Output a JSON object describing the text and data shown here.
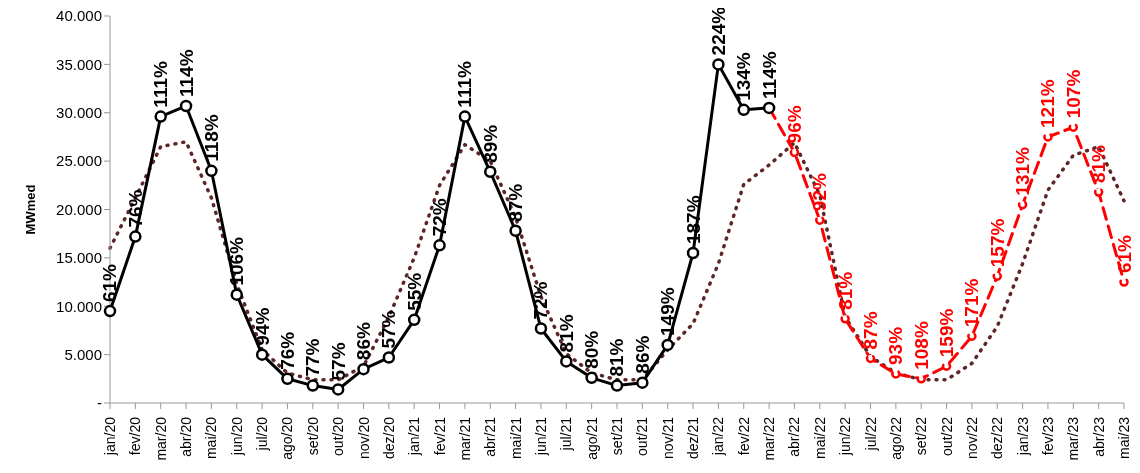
{
  "chart_data": {
    "type": "line",
    "ylabel": "MWmed",
    "categories": [
      "jan/20",
      "fev/20",
      "mar/20",
      "abr/20",
      "mai/20",
      "jun/20",
      "jul/20",
      "ago/20",
      "set/20",
      "out/20",
      "nov/20",
      "dez/20",
      "jan/21",
      "fev/21",
      "mar/21",
      "abr/21",
      "mai/21",
      "jun/21",
      "jul/21",
      "ago/21",
      "set/21",
      "out/21",
      "nov/21",
      "dez/21",
      "jan/22",
      "fev/22",
      "mar/22",
      "abr/22",
      "mai/22",
      "jun/22",
      "jul/22",
      "ago/22",
      "set/22",
      "out/22",
      "nov/22",
      "dez/22",
      "jan/23",
      "fev/23",
      "mar/23",
      "abr/23",
      "mai/23"
    ],
    "ylim": [
      0,
      40000
    ],
    "yticks": [
      {
        "value": 0,
        "label": "-"
      },
      {
        "value": 5000,
        "label": "5.000"
      },
      {
        "value": 10000,
        "label": "10.000"
      },
      {
        "value": 15000,
        "label": "15.000"
      },
      {
        "value": 20000,
        "label": "20.000"
      },
      {
        "value": 25000,
        "label": "25.000"
      },
      {
        "value": 30000,
        "label": "30.000"
      },
      {
        "value": 35000,
        "label": "35.000"
      },
      {
        "value": 40000,
        "label": "40.000"
      }
    ],
    "grid": false,
    "legend": false,
    "series": [
      {
        "color": "#5c2626",
        "line_style": "dotted",
        "marker": "none",
        "values": [
          16000,
          21200,
          26500,
          27000,
          21200,
          12300,
          5500,
          3100,
          2400,
          2400,
          3800,
          8900,
          15000,
          22500,
          26700,
          25000,
          19200,
          11000,
          5100,
          3100,
          2400,
          2400,
          5500,
          8200,
          14400,
          22600,
          24600,
          26900,
          21500,
          8900,
          4800,
          3100,
          2400,
          2400,
          4100,
          7900,
          14400,
          22000,
          25600,
          26500,
          20900
        ]
      },
      {
        "color": "#000000",
        "line_style": "solid",
        "marker": "circle",
        "values": [
          9500,
          17200,
          29600,
          30700,
          24000,
          11200,
          5000,
          2500,
          1800,
          1400,
          3500,
          4700,
          8600,
          16300,
          29600,
          23900,
          17800,
          7700,
          4300,
          2600,
          1800,
          2100,
          6000,
          15500,
          35000,
          30300,
          30500,
          null,
          null,
          null,
          null,
          null,
          null,
          null,
          null,
          null,
          null,
          null,
          null,
          null,
          null
        ]
      },
      {
        "color": "#ff0000",
        "line_style": "dashed",
        "marker": "circle",
        "values": [
          null,
          null,
          null,
          null,
          null,
          null,
          null,
          null,
          null,
          null,
          null,
          null,
          null,
          null,
          null,
          null,
          null,
          null,
          null,
          null,
          null,
          null,
          null,
          null,
          null,
          null,
          30500,
          25900,
          18900,
          8700,
          4600,
          3000,
          2500,
          3800,
          6900,
          13100,
          20500,
          27500,
          28500,
          21800,
          12500
        ]
      }
    ],
    "annotations": [
      {
        "text": "61%",
        "x": "jan/20",
        "y": 9500
      },
      {
        "text": "76%",
        "x": "fev/20",
        "y": 17200
      },
      {
        "text": "111%",
        "x": "mar/20",
        "y": 29600
      },
      {
        "text": "114%",
        "x": "abr/20",
        "y": 30700
      },
      {
        "text": "118%",
        "x": "mai/20",
        "y": 24000
      },
      {
        "text": "106%",
        "x": "jun/20",
        "y": 11200
      },
      {
        "text": "94%",
        "x": "jul/20",
        "y": 5000
      },
      {
        "text": "76%",
        "x": "ago/20",
        "y": 2500
      },
      {
        "text": "77%",
        "x": "set/20",
        "y": 1800
      },
      {
        "text": "57%",
        "x": "out/20",
        "y": 1400
      },
      {
        "text": "86%",
        "x": "nov/20",
        "y": 3500
      },
      {
        "text": "57%",
        "x": "dez/20",
        "y": 4700
      },
      {
        "text": "55%",
        "x": "jan/21",
        "y": 8600
      },
      {
        "text": "72%",
        "x": "fev/21",
        "y": 16300
      },
      {
        "text": "111%",
        "x": "mar/21",
        "y": 29600
      },
      {
        "text": "89%",
        "x": "abr/21",
        "y": 23900
      },
      {
        "text": "87%",
        "x": "mai/21",
        "y": 17800
      },
      {
        "text": "72%",
        "x": "jun/21",
        "y": 7700
      },
      {
        "text": "81%",
        "x": "jul/21",
        "y": 4300
      },
      {
        "text": "80%",
        "x": "ago/21",
        "y": 2600
      },
      {
        "text": "81%",
        "x": "set/21",
        "y": 1800
      },
      {
        "text": "86%",
        "x": "out/21",
        "y": 2100
      },
      {
        "text": "149%",
        "x": "nov/21",
        "y": 6000
      },
      {
        "text": "187%",
        "x": "dez/21",
        "y": 15500
      },
      {
        "text": "224%",
        "x": "jan/22",
        "y": 35000
      },
      {
        "text": "134%",
        "x": "fev/22",
        "y": 30300
      },
      {
        "text": "114%",
        "x": "mar/22",
        "y": 30500
      },
      {
        "text": "96%",
        "x": "abr/22",
        "y": 25900
      },
      {
        "text": "92%",
        "x": "mai/22",
        "y": 18900
      },
      {
        "text": "81%",
        "x": "jun/22",
        "y": 8700
      },
      {
        "text": "87%",
        "x": "jul/22",
        "y": 4600
      },
      {
        "text": "93%",
        "x": "ago/22",
        "y": 3000
      },
      {
        "text": "108%",
        "x": "set/22",
        "y": 2500
      },
      {
        "text": "159%",
        "x": "out/22",
        "y": 3800
      },
      {
        "text": "171%",
        "x": "nov/22",
        "y": 6900
      },
      {
        "text": "157%",
        "x": "dez/22",
        "y": 13100
      },
      {
        "text": "131%",
        "x": "jan/23",
        "y": 20500
      },
      {
        "text": "121%",
        "x": "fev/23",
        "y": 27500
      },
      {
        "text": "107%",
        "x": "mar/23",
        "y": 28500
      },
      {
        "text": "81%",
        "x": "abr/23",
        "y": 21800
      },
      {
        "text": "61%",
        "x": "mai/23",
        "y": 12500
      }
    ]
  }
}
